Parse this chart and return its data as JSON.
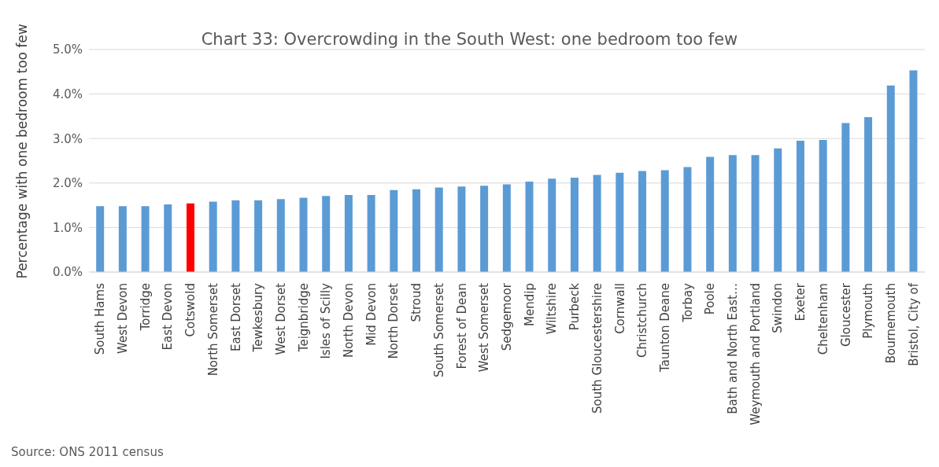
{
  "chart_data": {
    "type": "bar",
    "title": "Chart 33: Overcrowding in the South West: one bedroom too few",
    "ylabel": "Percentage with one bedroom too few",
    "categories": [
      "South Hams",
      "West Devon",
      "Torridge",
      "East Devon",
      "Cotswold",
      "North Somerset",
      "East Dorset",
      "Tewkesbury",
      "West Dorset",
      "Teignbridge",
      "Isles of Scilly",
      "North Devon",
      "Mid Devon",
      "North Dorset",
      "Stroud",
      "South Somerset",
      "Forest of Dean",
      "West Somerset",
      "Sedgemoor",
      "Mendip",
      "Wiltshire",
      "Purbeck",
      "South Gloucestershire",
      "Cornwall",
      "Christchurch",
      "Taunton Deane",
      "Torbay",
      "Poole",
      "Bath and North East…",
      "Weymouth and Portland",
      "Swindon",
      "Exeter",
      "Cheltenham",
      "Gloucester",
      "Plymouth",
      "Bournemouth",
      "Bristol, City of"
    ],
    "values": [
      1.48,
      1.48,
      1.48,
      1.52,
      1.54,
      1.58,
      1.61,
      1.61,
      1.64,
      1.67,
      1.71,
      1.73,
      1.73,
      1.84,
      1.86,
      1.9,
      1.92,
      1.94,
      1.97,
      2.03,
      2.1,
      2.12,
      2.18,
      2.23,
      2.27,
      2.29,
      2.36,
      2.59,
      2.63,
      2.63,
      2.78,
      2.95,
      2.97,
      3.35,
      3.48,
      4.19,
      4.53
    ],
    "colors": [
      "#5b9bd5",
      "#5b9bd5",
      "#5b9bd5",
      "#5b9bd5",
      "#ff0000",
      "#5b9bd5",
      "#5b9bd5",
      "#5b9bd5",
      "#5b9bd5",
      "#5b9bd5",
      "#5b9bd5",
      "#5b9bd5",
      "#5b9bd5",
      "#5b9bd5",
      "#5b9bd5",
      "#5b9bd5",
      "#5b9bd5",
      "#5b9bd5",
      "#5b9bd5",
      "#5b9bd5",
      "#5b9bd5",
      "#5b9bd5",
      "#5b9bd5",
      "#5b9bd5",
      "#5b9bd5",
      "#5b9bd5",
      "#5b9bd5",
      "#5b9bd5",
      "#5b9bd5",
      "#5b9bd5",
      "#5b9bd5",
      "#5b9bd5",
      "#5b9bd5",
      "#5b9bd5",
      "#5b9bd5",
      "#5b9bd5",
      "#5b9bd5"
    ],
    "ylim": [
      0,
      5
    ],
    "yticks": [
      {
        "value": 0,
        "label": "0.0%"
      },
      {
        "value": 1,
        "label": "1.0%"
      },
      {
        "value": 2,
        "label": "2.0%"
      },
      {
        "value": 3,
        "label": "3.0%"
      },
      {
        "value": 4,
        "label": "4.0%"
      },
      {
        "value": 5,
        "label": "5.0%"
      }
    ],
    "grid": "y",
    "legend": false,
    "annotations": [
      "Source: ONS 2011 census"
    ]
  }
}
